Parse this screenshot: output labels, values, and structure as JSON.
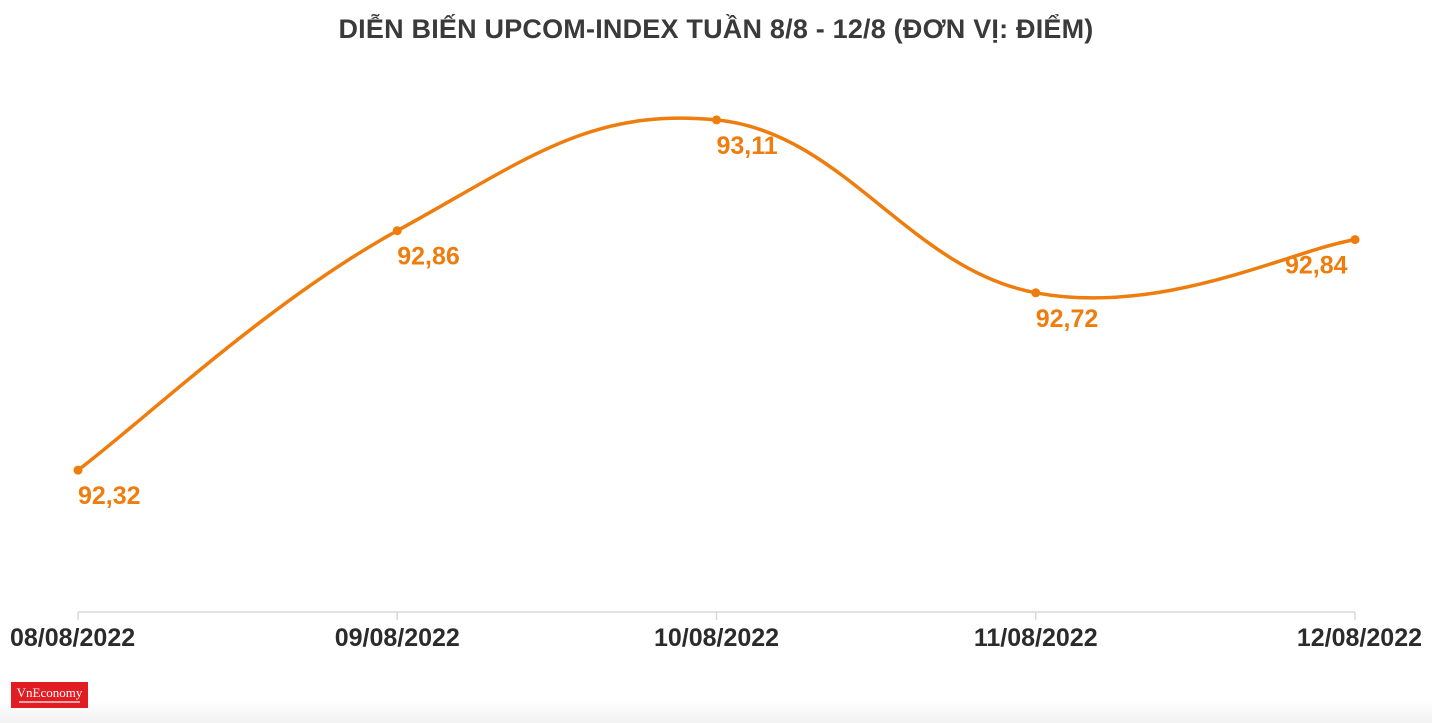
{
  "title": "DIỄN BIẾN UPCOM-INDEX TUẦN 8/8 - 12/8 (ĐƠN VỊ: ĐIỂM)",
  "logo": {
    "text": "VnEconomy",
    "color": "#e21c23"
  },
  "colors": {
    "line": "#ee7d0e",
    "label": "#ee7d0e",
    "axis": "#d9d9d9",
    "tick_text": "#2b2b2b"
  },
  "chart_data": {
    "type": "line",
    "title": "DIỄN BIẾN UPCOM-INDEX TUẦN 8/8 - 12/8 (ĐƠN VỊ: ĐIỂM)",
    "categories": [
      "08/08/2022",
      "09/08/2022",
      "10/08/2022",
      "11/08/2022",
      "12/08/2022"
    ],
    "series": [
      {
        "values": [
          92.32,
          92.86,
          93.11,
          92.72,
          92.84
        ]
      }
    ],
    "data_labels": [
      "92,32",
      "92,86",
      "93,11",
      "92,72",
      "92,84"
    ],
    "xlabel": "",
    "ylabel": "",
    "ylim": [
      92.0,
      93.2
    ],
    "grid": false,
    "legend": "none",
    "smooth": true
  }
}
